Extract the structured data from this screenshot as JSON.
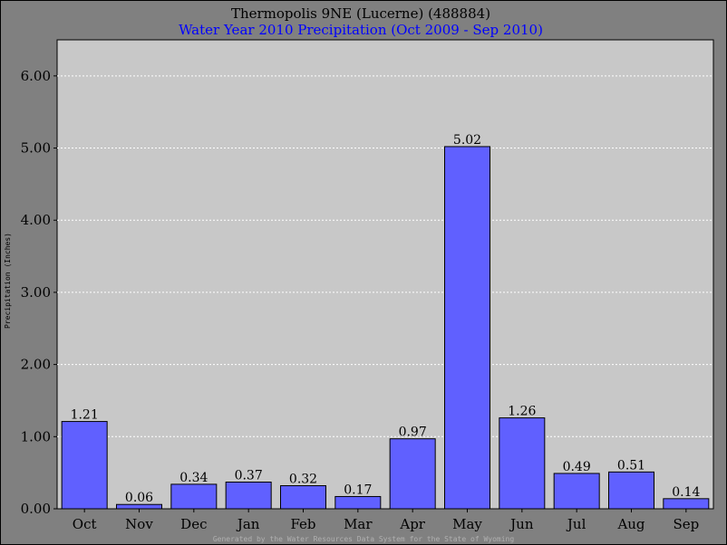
{
  "colors": {
    "frame_bg": "#808080",
    "plot_bg": "#c8c8c8",
    "bar_fill": "#6060ff",
    "grid": "#ffffff",
    "subtitle": "#0000ff"
  },
  "chart_data": {
    "type": "bar",
    "title": "Thermopolis 9NE (Lucerne) (488884)",
    "subtitle": "Water Year 2010 Precipitation (Oct 2009 - Sep 2010)",
    "ylabel": "Precipitation (Inches)",
    "xlabel": "",
    "ylim": [
      0,
      6.5
    ],
    "yticks": [
      "0.00",
      "1.00",
      "2.00",
      "3.00",
      "4.00",
      "5.00",
      "6.00"
    ],
    "categories": [
      "Oct",
      "Nov",
      "Dec",
      "Jan",
      "Feb",
      "Mar",
      "Apr",
      "May",
      "Jun",
      "Jul",
      "Aug",
      "Sep"
    ],
    "values": [
      1.21,
      0.06,
      0.34,
      0.37,
      0.32,
      0.17,
      0.97,
      5.02,
      1.26,
      0.49,
      0.51,
      0.14
    ],
    "value_labels": [
      "1.21",
      "0.06",
      "0.34",
      "0.37",
      "0.32",
      "0.17",
      "0.97",
      "5.02",
      "1.26",
      "0.49",
      "0.51",
      "0.14"
    ],
    "grid": true,
    "legend": "none"
  },
  "footer": "Generated by the Water Resources Data System for the State of Wyoming"
}
